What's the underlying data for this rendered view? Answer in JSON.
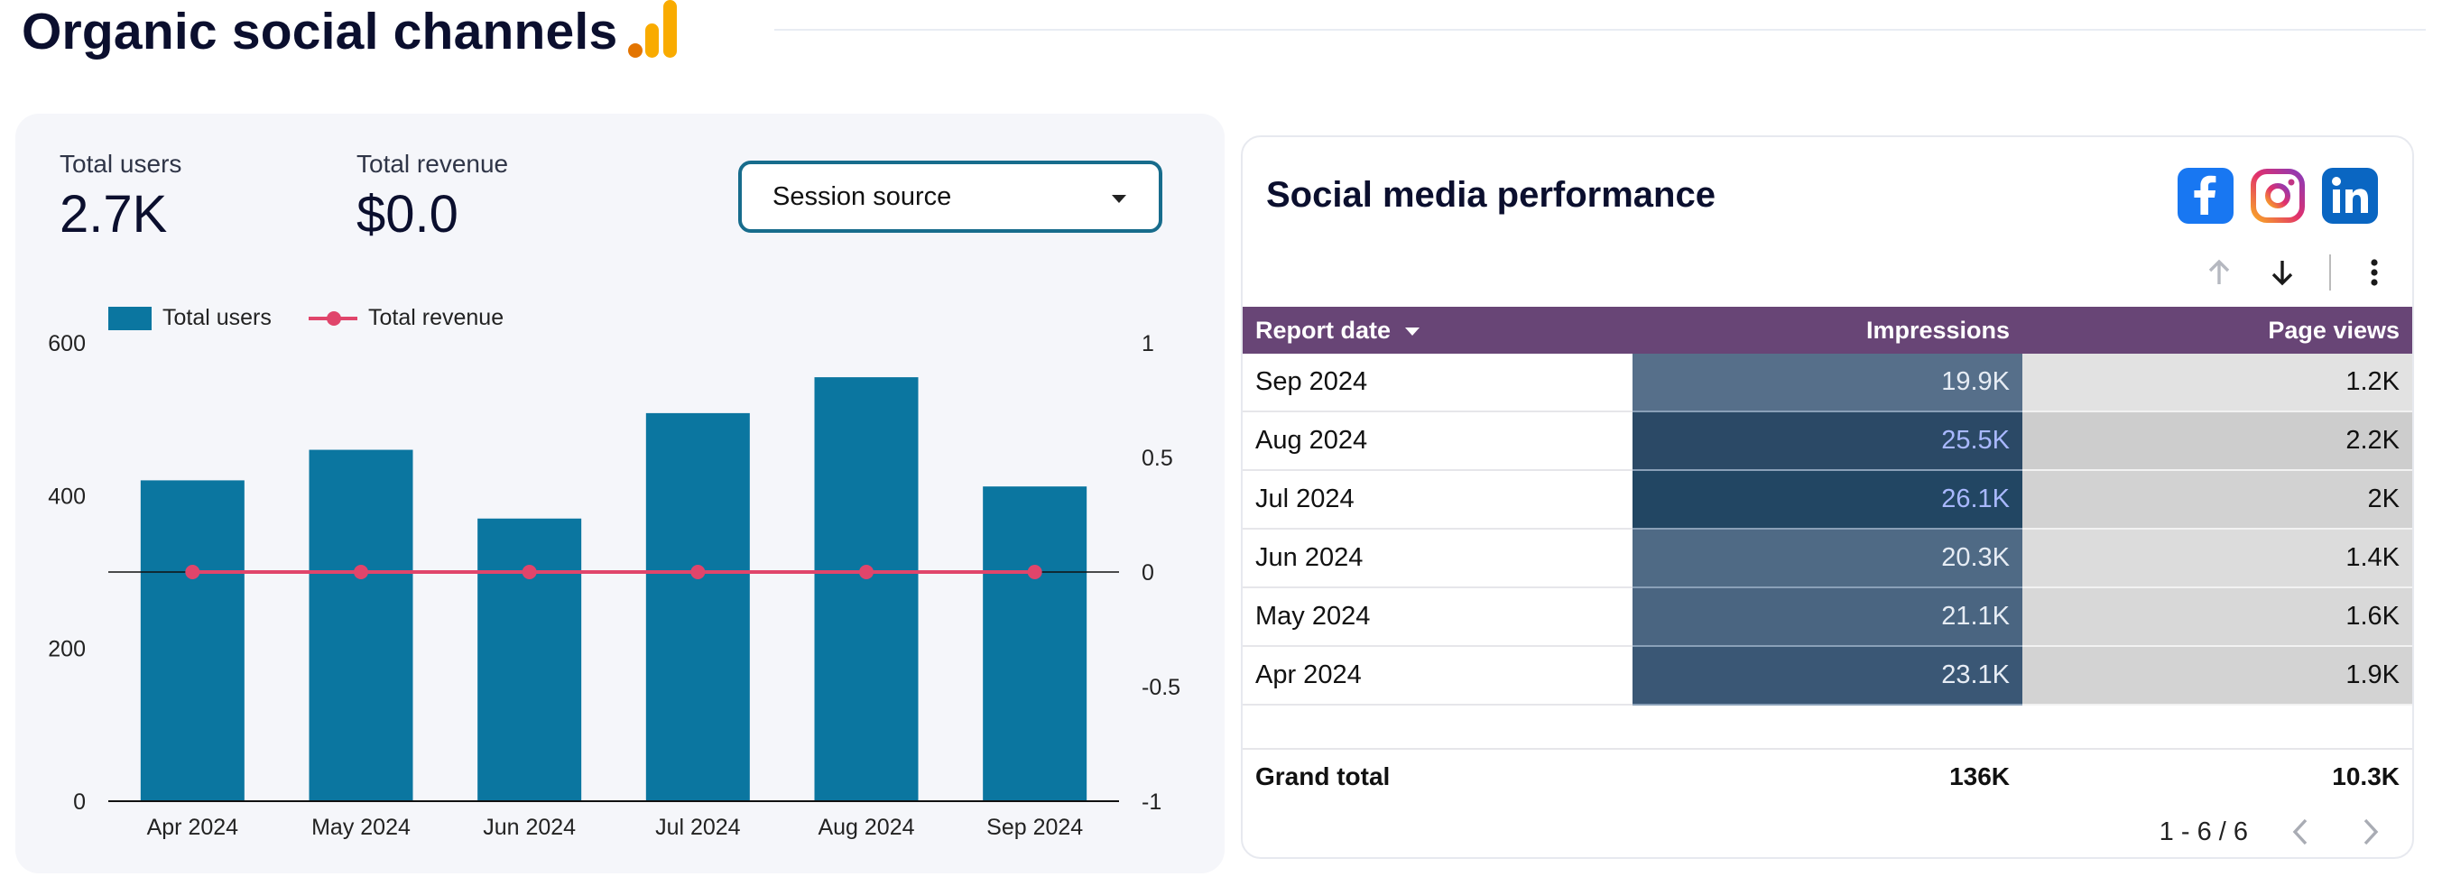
{
  "header": {
    "title": "Organic social channels",
    "icon": "analytics-icon"
  },
  "kpis": [
    {
      "label": "Total users",
      "value": "2.7K"
    },
    {
      "label": "Total revenue",
      "value": "$0.0"
    }
  ],
  "filter": {
    "label": "Session source"
  },
  "colors": {
    "bar": "#0b76a0",
    "line": "#e0456b",
    "header_bg": "#684576",
    "selector_border": "#176c8c"
  },
  "chart_data": {
    "type": "bar",
    "categories": [
      "Apr 2024",
      "May 2024",
      "Jun 2024",
      "Jul 2024",
      "Aug 2024",
      "Sep 2024"
    ],
    "series": [
      {
        "name": "Total users",
        "type": "bar",
        "axis": "left",
        "values": [
          420,
          460,
          370,
          508,
          555,
          412
        ]
      },
      {
        "name": "Total revenue",
        "type": "line",
        "axis": "right",
        "values": [
          0,
          0,
          0,
          0,
          0,
          0
        ]
      }
    ],
    "y_left": {
      "ticks": [
        "600",
        "400",
        "200",
        "0"
      ],
      "range": [
        0,
        600
      ]
    },
    "y_right": {
      "ticks": [
        "1",
        "0.5",
        "0",
        "-0.5",
        "-1"
      ],
      "range": [
        -1,
        1
      ]
    },
    "grid": false,
    "legend": "top-left"
  },
  "social_panel": {
    "title": "Social media performance",
    "icons": [
      "facebook-icon",
      "instagram-icon",
      "linkedin-icon"
    ],
    "columns": [
      "Report date",
      "Impressions",
      "Page views"
    ],
    "rows": [
      {
        "date": "Sep 2024",
        "impressions": "19.9K",
        "page_views": "1.2K",
        "imp_shade": "#566f8a",
        "pv_shade": "#e2e2e2",
        "imp_dark": false
      },
      {
        "date": "Aug 2024",
        "impressions": "25.5K",
        "page_views": "2.2K",
        "imp_shade": "#2b4966",
        "pv_shade": "#cdcdcd",
        "imp_dark": true
      },
      {
        "date": "Jul 2024",
        "impressions": "26.1K",
        "page_views": "2K",
        "imp_shade": "#224663",
        "pv_shade": "#d2d2d2",
        "imp_dark": true
      },
      {
        "date": "Jun 2024",
        "impressions": "20.3K",
        "page_views": "1.4K",
        "imp_shade": "#4f6a85",
        "pv_shade": "#dcdcdc",
        "imp_dark": false
      },
      {
        "date": "May 2024",
        "impressions": "21.1K",
        "page_views": "1.6K",
        "imp_shade": "#4a6581",
        "pv_shade": "#d8d8d8",
        "imp_dark": false
      },
      {
        "date": "Apr 2024",
        "impressions": "23.1K",
        "page_views": "1.9K",
        "imp_shade": "#3a5775",
        "pv_shade": "#d3d3d3",
        "imp_dark": false
      }
    ],
    "grand_total": {
      "label": "Grand total",
      "impressions": "136K",
      "page_views": "10.3K"
    },
    "pagination": "1 - 6 / 6"
  }
}
